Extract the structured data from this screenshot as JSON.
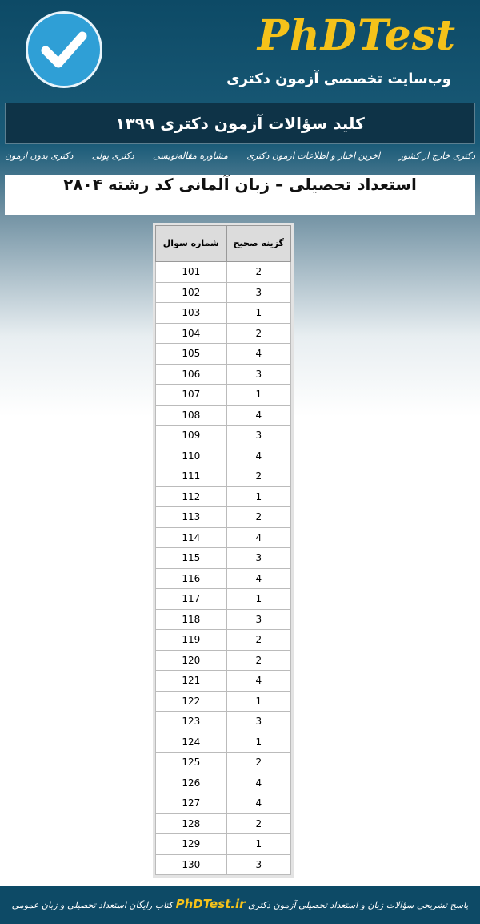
{
  "header": {
    "brand": "PhDTest",
    "subtitle": "وب‌سایت تخصصی آزمون دکتری"
  },
  "banner": "کلید سؤالات آزمون دکتری ۱۳۹۹",
  "nav": [
    "دکتری بدون آزمون",
    "دکتری پولی",
    "مشاوره مقاله‌نویسی",
    "آخرین اخبار و اطلاعات آزمون دکتری",
    "دکتری خارج از کشور"
  ],
  "title": "استعداد تحصیلی – زبان آلمانی کد رشته ۲۸۰۴",
  "table": {
    "columns": [
      "شماره سوال",
      "گزینه صحیح"
    ],
    "rows": [
      [
        101,
        2
      ],
      [
        102,
        3
      ],
      [
        103,
        1
      ],
      [
        104,
        2
      ],
      [
        105,
        4
      ],
      [
        106,
        3
      ],
      [
        107,
        1
      ],
      [
        108,
        4
      ],
      [
        109,
        3
      ],
      [
        110,
        4
      ],
      [
        111,
        2
      ],
      [
        112,
        1
      ],
      [
        113,
        2
      ],
      [
        114,
        4
      ],
      [
        115,
        3
      ],
      [
        116,
        4
      ],
      [
        117,
        1
      ],
      [
        118,
        3
      ],
      [
        119,
        2
      ],
      [
        120,
        2
      ],
      [
        121,
        4
      ],
      [
        122,
        1
      ],
      [
        123,
        3
      ],
      [
        124,
        1
      ],
      [
        125,
        2
      ],
      [
        126,
        4
      ],
      [
        127,
        4
      ],
      [
        128,
        2
      ],
      [
        129,
        1
      ],
      [
        130,
        3
      ]
    ]
  },
  "footer": {
    "text_before": "پاسخ تشریحی سؤالات زبان و استعداد تحصیلی آزمون دکتری",
    "link": "PhDTest.ir",
    "text_after": "کتاب رایگان استعداد تحصیلی و زبان عمومی"
  }
}
